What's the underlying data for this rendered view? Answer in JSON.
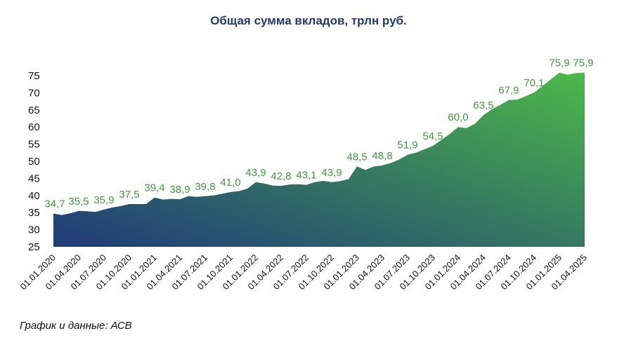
{
  "chart_data": {
    "type": "area",
    "title": "Общая сумма вкладов, трлн руб.",
    "xlabel": "",
    "ylabel": "",
    "ylim": [
      25,
      75
    ],
    "yticks": [
      25,
      30,
      35,
      40,
      45,
      50,
      55,
      60,
      65,
      70,
      75
    ],
    "grid": false,
    "legend": "none",
    "colors": {
      "gradient_start": "#1f3a7a",
      "gradient_end": "#4cb849",
      "label_color": "#3f9a3a"
    },
    "xticks": [
      "01.01.2020",
      "01.04.2020",
      "01.07.2020",
      "01.10.2020",
      "01.01.2021",
      "01.04.2021",
      "01.07.2021",
      "01.10.2021",
      "01.01.2022",
      "01.04.2022",
      "01.07.2022",
      "01.10.2022",
      "01.01.2023",
      "01.04.2023",
      "01.07.2023",
      "01.10.2023",
      "01.01.2024",
      "01.04.2024",
      "01.07.2024",
      "01.10.2024",
      "01.01.2025",
      "01.04.2025"
    ],
    "x": [
      "01.01.2020",
      "01.02.2020",
      "01.03.2020",
      "01.04.2020",
      "01.05.2020",
      "01.06.2020",
      "01.07.2020",
      "01.08.2020",
      "01.09.2020",
      "01.10.2020",
      "01.11.2020",
      "01.12.2020",
      "01.01.2021",
      "01.02.2021",
      "01.03.2021",
      "01.04.2021",
      "01.05.2021",
      "01.06.2021",
      "01.07.2021",
      "01.08.2021",
      "01.09.2021",
      "01.10.2021",
      "01.11.2021",
      "01.12.2021",
      "01.01.2022",
      "01.02.2022",
      "01.03.2022",
      "01.04.2022",
      "01.05.2022",
      "01.06.2022",
      "01.07.2022",
      "01.08.2022",
      "01.09.2022",
      "01.10.2022",
      "01.11.2022",
      "01.12.2022",
      "01.01.2023",
      "01.02.2023",
      "01.03.2023",
      "01.04.2023",
      "01.05.2023",
      "01.06.2023",
      "01.07.2023",
      "01.08.2023",
      "01.09.2023",
      "01.10.2023",
      "01.11.2023",
      "01.12.2023",
      "01.01.2024",
      "01.02.2024",
      "01.03.2024",
      "01.04.2024",
      "01.05.2024",
      "01.06.2024",
      "01.07.2024",
      "01.08.2024",
      "01.09.2024",
      "01.10.2024",
      "01.11.2024",
      "01.12.2024",
      "01.01.2025",
      "01.02.2025",
      "01.03.2025",
      "01.04.2025"
    ],
    "values": [
      34.7,
      34.3,
      34.8,
      35.5,
      35.4,
      35.2,
      35.9,
      36.5,
      36.9,
      37.5,
      37.5,
      37.5,
      39.4,
      38.8,
      39.0,
      38.9,
      39.8,
      39.6,
      39.8,
      40.0,
      40.5,
      41.0,
      41.3,
      42.0,
      43.9,
      43.5,
      42.9,
      42.8,
      43.2,
      43.3,
      43.1,
      43.9,
      44.3,
      43.9,
      44.2,
      44.8,
      48.5,
      47.5,
      48.5,
      48.8,
      49.5,
      50.5,
      51.9,
      52.5,
      53.5,
      54.5,
      56.2,
      58.0,
      60.0,
      59.7,
      61.0,
      63.5,
      65.2,
      66.5,
      67.9,
      68.0,
      69.0,
      70.1,
      72.0,
      74.0,
      75.9,
      75.3,
      75.8,
      75.9
    ],
    "data_labels": [
      {
        "x": "01.01.2020",
        "text": "34,7"
      },
      {
        "x": "01.04.2020",
        "text": "35,5"
      },
      {
        "x": "01.07.2020",
        "text": "35,9"
      },
      {
        "x": "01.10.2020",
        "text": "37,5"
      },
      {
        "x": "01.01.2021",
        "text": "39,4"
      },
      {
        "x": "01.04.2021",
        "text": "38,9"
      },
      {
        "x": "01.07.2021",
        "text": "39,8"
      },
      {
        "x": "01.10.2021",
        "text": "41,0"
      },
      {
        "x": "01.01.2022",
        "text": "43,9"
      },
      {
        "x": "01.04.2022",
        "text": "42,8"
      },
      {
        "x": "01.07.2022",
        "text": "43,1"
      },
      {
        "x": "01.10.2022",
        "text": "43,9"
      },
      {
        "x": "01.01.2023",
        "text": "48,5"
      },
      {
        "x": "01.04.2023",
        "text": "48,8"
      },
      {
        "x": "01.07.2023",
        "text": "51,9"
      },
      {
        "x": "01.10.2023",
        "text": "54,5"
      },
      {
        "x": "01.01.2024",
        "text": "60,0"
      },
      {
        "x": "01.04.2024",
        "text": "63,5"
      },
      {
        "x": "01.07.2024",
        "text": "67,9"
      },
      {
        "x": "01.10.2024",
        "text": "70,1"
      },
      {
        "x": "01.01.2025",
        "text": "75,9"
      },
      {
        "x": "01.04.2025",
        "text": "75,9"
      }
    ]
  },
  "source": "График и данные: АСВ"
}
